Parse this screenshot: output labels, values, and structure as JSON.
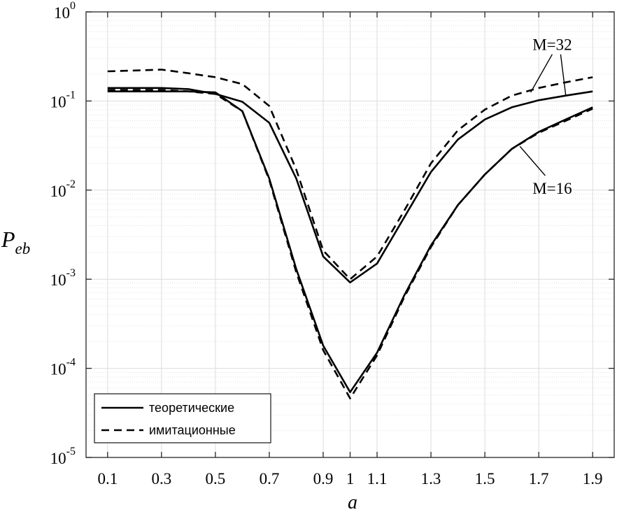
{
  "chart_data": {
    "type": "line",
    "title": "",
    "xlabel": "a",
    "ylabel": {
      "base": "P",
      "sub": "eb"
    },
    "yscale": "log",
    "xlim": [
      0.02,
      1.98
    ],
    "ylim_exp": [
      -5,
      0
    ],
    "grid": true,
    "x_ticks": [
      0.1,
      0.3,
      0.5,
      0.7,
      0.9,
      1,
      1.1,
      1.3,
      1.5,
      1.7,
      1.9
    ],
    "x_tick_labels": [
      "0.1",
      "0.3",
      "0.5",
      "0.7",
      "0.9",
      "1",
      "1.1",
      "1.3",
      "1.5",
      "1.7",
      "1.9"
    ],
    "y_ticks": [
      {
        "exp": -5,
        "base": "10",
        "sup": "-5"
      },
      {
        "exp": -4,
        "base": "10",
        "sup": "-4"
      },
      {
        "exp": -3,
        "base": "10",
        "sup": "-3"
      },
      {
        "exp": -2,
        "base": "10",
        "sup": "-2"
      },
      {
        "exp": -1,
        "base": "10",
        "sup": "-1"
      },
      {
        "exp": 0,
        "base": "10",
        "sup": "0"
      }
    ],
    "x": [
      0.1,
      0.2,
      0.3,
      0.4,
      0.5,
      0.6,
      0.7,
      0.8,
      0.9,
      1.0,
      1.1,
      1.2,
      1.3,
      1.4,
      1.5,
      1.6,
      1.7,
      1.8,
      1.9
    ],
    "series": [
      {
        "name": "M=32 теоретические",
        "style": "solid",
        "values": [
          0.14,
          0.14,
          0.14,
          0.136,
          0.12,
          0.098,
          0.057,
          0.0135,
          0.0018,
          0.00092,
          0.0015,
          0.0049,
          0.016,
          0.037,
          0.062,
          0.085,
          0.102,
          0.115,
          0.128
        ]
      },
      {
        "name": "M=32 имитационные",
        "style": "dashed",
        "values": [
          0.215,
          0.22,
          0.225,
          0.205,
          0.185,
          0.155,
          0.088,
          0.017,
          0.0021,
          0.001,
          0.0018,
          0.0058,
          0.02,
          0.047,
          0.08,
          0.115,
          0.14,
          0.162,
          0.185
        ]
      },
      {
        "name": "M=16 теоретические",
        "style": "solid",
        "values": [
          0.128,
          0.128,
          0.128,
          0.128,
          0.125,
          0.077,
          0.0135,
          0.0013,
          0.00018,
          5.4e-05,
          0.00015,
          0.00065,
          0.0024,
          0.0068,
          0.015,
          0.029,
          0.045,
          0.062,
          0.085
        ]
      },
      {
        "name": "M=16 имитационные",
        "style": "dashed",
        "values": [
          0.133,
          0.133,
          0.133,
          0.128,
          0.12,
          0.077,
          0.013,
          0.0012,
          0.00016,
          4.6e-05,
          0.00014,
          0.00062,
          0.0023,
          0.0068,
          0.015,
          0.029,
          0.044,
          0.06,
          0.082
        ]
      }
    ],
    "annotations": [
      {
        "text": "M=32",
        "x": 1.75,
        "y": 0.43,
        "arrows_to": [
          [
            1.67,
            0.125
          ],
          [
            1.8,
            0.117
          ]
        ]
      },
      {
        "text": "M=16",
        "x": 1.75,
        "y": 0.0105,
        "arrows_to": [
          [
            1.63,
            0.031
          ]
        ]
      }
    ],
    "legend": {
      "placement": "bottom-left",
      "entries": [
        {
          "label": "теоретические",
          "style": "solid"
        },
        {
          "label": "имитационные",
          "style": "dashed"
        }
      ]
    }
  }
}
